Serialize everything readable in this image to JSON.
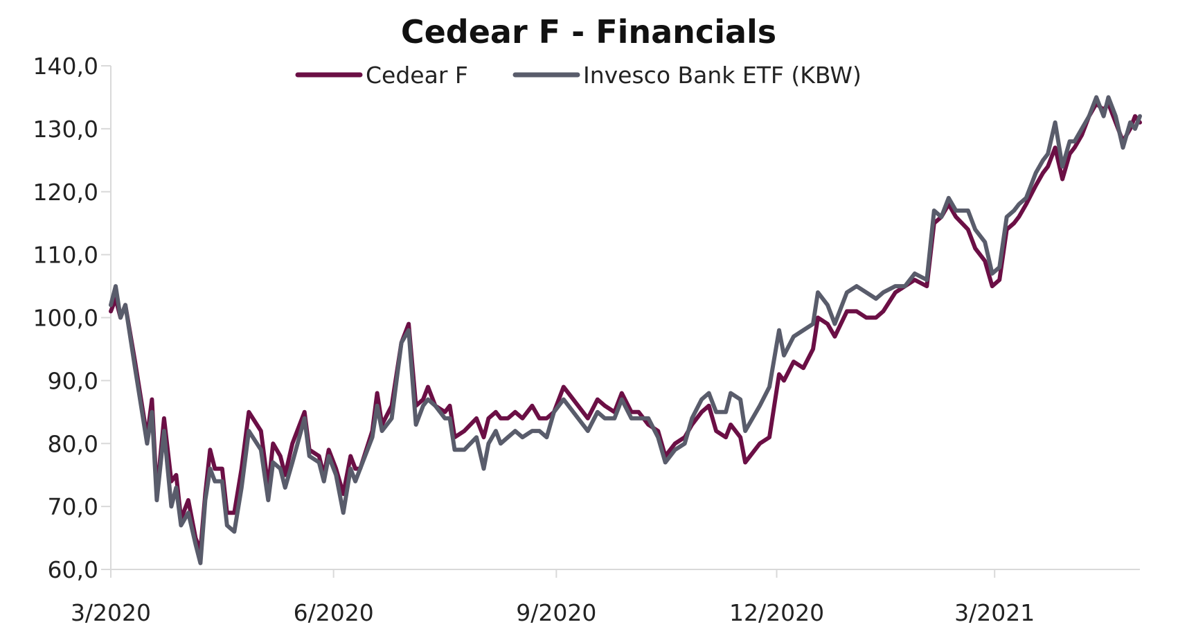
{
  "chart_data": {
    "type": "line",
    "title": "Cedear F - Financials",
    "xlabel": "",
    "ylabel": "",
    "ylim": [
      60,
      140
    ],
    "xlim": [
      "2020-03-01",
      "2021-04-20"
    ],
    "grid": false,
    "legend_position": "top-center",
    "y_ticks": [
      "60,0",
      "70,0",
      "80,0",
      "90,0",
      "100,0",
      "110,0",
      "120,0",
      "130,0",
      "140,0"
    ],
    "x_ticks": [
      {
        "date": "2020-03-01",
        "label": "3/2020"
      },
      {
        "date": "2020-06-01",
        "label": "6/2020"
      },
      {
        "date": "2020-09-01",
        "label": "9/2020"
      },
      {
        "date": "2020-12-01",
        "label": "12/2020"
      },
      {
        "date": "2021-03-01",
        "label": "3/2021"
      }
    ],
    "series": [
      {
        "name": "Cedear F",
        "color": "#6b0f45",
        "points": [
          [
            "2020-03-01",
            101
          ],
          [
            "2020-03-03",
            103
          ],
          [
            "2020-03-05",
            100
          ],
          [
            "2020-03-07",
            102
          ],
          [
            "2020-03-11",
            93
          ],
          [
            "2020-03-16",
            81
          ],
          [
            "2020-03-18",
            87
          ],
          [
            "2020-03-20",
            72
          ],
          [
            "2020-03-23",
            84
          ],
          [
            "2020-03-26",
            74
          ],
          [
            "2020-03-28",
            75
          ],
          [
            "2020-03-30",
            68
          ],
          [
            "2020-04-02",
            71
          ],
          [
            "2020-04-05",
            65
          ],
          [
            "2020-04-07",
            63
          ],
          [
            "2020-04-09",
            72
          ],
          [
            "2020-04-11",
            79
          ],
          [
            "2020-04-13",
            76
          ],
          [
            "2020-04-16",
            76
          ],
          [
            "2020-04-18",
            69
          ],
          [
            "2020-04-21",
            69
          ],
          [
            "2020-04-24",
            76
          ],
          [
            "2020-04-27",
            85
          ],
          [
            "2020-05-02",
            82
          ],
          [
            "2020-05-05",
            73
          ],
          [
            "2020-05-07",
            80
          ],
          [
            "2020-05-10",
            78
          ],
          [
            "2020-05-12",
            75
          ],
          [
            "2020-05-15",
            80
          ],
          [
            "2020-05-20",
            85
          ],
          [
            "2020-05-22",
            79
          ],
          [
            "2020-05-26",
            78
          ],
          [
            "2020-05-28",
            75
          ],
          [
            "2020-05-30",
            79
          ],
          [
            "2020-06-02",
            76
          ],
          [
            "2020-06-05",
            72
          ],
          [
            "2020-06-08",
            78
          ],
          [
            "2020-06-10",
            76
          ],
          [
            "2020-06-12",
            76
          ],
          [
            "2020-06-17",
            82
          ],
          [
            "2020-06-19",
            88
          ],
          [
            "2020-06-21",
            83
          ],
          [
            "2020-06-25",
            86
          ],
          [
            "2020-06-29",
            96
          ],
          [
            "2020-07-02",
            99
          ],
          [
            "2020-07-05",
            86
          ],
          [
            "2020-07-08",
            87
          ],
          [
            "2020-07-10",
            89
          ],
          [
            "2020-07-13",
            86
          ],
          [
            "2020-07-17",
            85
          ],
          [
            "2020-07-19",
            86
          ],
          [
            "2020-07-21",
            81
          ],
          [
            "2020-07-25",
            82
          ],
          [
            "2020-07-30",
            84
          ],
          [
            "2020-08-02",
            81
          ],
          [
            "2020-08-04",
            84
          ],
          [
            "2020-08-07",
            85
          ],
          [
            "2020-08-09",
            84
          ],
          [
            "2020-08-12",
            84
          ],
          [
            "2020-08-15",
            85
          ],
          [
            "2020-08-18",
            84
          ],
          [
            "2020-08-22",
            86
          ],
          [
            "2020-08-25",
            84
          ],
          [
            "2020-08-28",
            84
          ],
          [
            "2020-08-31",
            85
          ],
          [
            "2020-09-04",
            89
          ],
          [
            "2020-09-06",
            88
          ],
          [
            "2020-09-10",
            86
          ],
          [
            "2020-09-14",
            84
          ],
          [
            "2020-09-18",
            87
          ],
          [
            "2020-09-21",
            86
          ],
          [
            "2020-09-25",
            85
          ],
          [
            "2020-09-28",
            88
          ],
          [
            "2020-10-02",
            85
          ],
          [
            "2020-10-05",
            85
          ],
          [
            "2020-10-09",
            83
          ],
          [
            "2020-10-13",
            82
          ],
          [
            "2020-10-16",
            78
          ],
          [
            "2020-10-20",
            80
          ],
          [
            "2020-10-24",
            81
          ],
          [
            "2020-10-27",
            83
          ],
          [
            "2020-10-31",
            85
          ],
          [
            "2020-11-03",
            86
          ],
          [
            "2020-11-06",
            82
          ],
          [
            "2020-11-10",
            81
          ],
          [
            "2020-11-12",
            83
          ],
          [
            "2020-11-16",
            81
          ],
          [
            "2020-11-18",
            77
          ],
          [
            "2020-11-24",
            80
          ],
          [
            "2020-11-28",
            81
          ],
          [
            "2020-12-02",
            91
          ],
          [
            "2020-12-04",
            90
          ],
          [
            "2020-12-08",
            93
          ],
          [
            "2020-12-12",
            92
          ],
          [
            "2020-12-16",
            95
          ],
          [
            "2020-12-18",
            100
          ],
          [
            "2020-12-22",
            99
          ],
          [
            "2020-12-25",
            97
          ],
          [
            "2020-12-30",
            101
          ],
          [
            "2021-01-03",
            101
          ],
          [
            "2021-01-07",
            100
          ],
          [
            "2021-01-11",
            100
          ],
          [
            "2021-01-14",
            101
          ],
          [
            "2021-01-19",
            104
          ],
          [
            "2021-01-23",
            105
          ],
          [
            "2021-01-27",
            106
          ],
          [
            "2021-02-01",
            105
          ],
          [
            "2021-02-04",
            115
          ],
          [
            "2021-02-07",
            116
          ],
          [
            "2021-02-10",
            118
          ],
          [
            "2021-02-13",
            116
          ],
          [
            "2021-02-18",
            114
          ],
          [
            "2021-02-21",
            111
          ],
          [
            "2021-02-25",
            109
          ],
          [
            "2021-02-28",
            105
          ],
          [
            "2021-03-03",
            106
          ],
          [
            "2021-03-06",
            114
          ],
          [
            "2021-03-09",
            115
          ],
          [
            "2021-03-11",
            116
          ],
          [
            "2021-03-14",
            118
          ],
          [
            "2021-03-18",
            121
          ],
          [
            "2021-03-21",
            123
          ],
          [
            "2021-03-23",
            124
          ],
          [
            "2021-03-26",
            127
          ],
          [
            "2021-03-29",
            122
          ],
          [
            "2021-04-01",
            126
          ],
          [
            "2021-04-03",
            127
          ],
          [
            "2021-04-06",
            129
          ],
          [
            "2021-04-09",
            132
          ],
          [
            "2021-04-12",
            134
          ],
          [
            "2021-04-15",
            133
          ],
          [
            "2021-04-17",
            134
          ],
          [
            "2021-04-20",
            131
          ],
          [
            "2021-04-23",
            128
          ],
          [
            "2021-04-26",
            130
          ],
          [
            "2021-04-28",
            132
          ],
          [
            "2021-04-30",
            131
          ]
        ]
      },
      {
        "name": "Invesco Bank ETF (KBW)",
        "color": "#595c6b",
        "points": [
          [
            "2020-03-01",
            102
          ],
          [
            "2020-03-03",
            105
          ],
          [
            "2020-03-05",
            100
          ],
          [
            "2020-03-07",
            102
          ],
          [
            "2020-03-11",
            92
          ],
          [
            "2020-03-16",
            80
          ],
          [
            "2020-03-18",
            85
          ],
          [
            "2020-03-20",
            71
          ],
          [
            "2020-03-23",
            82
          ],
          [
            "2020-03-26",
            70
          ],
          [
            "2020-03-28",
            73
          ],
          [
            "2020-03-30",
            67
          ],
          [
            "2020-04-02",
            69
          ],
          [
            "2020-04-05",
            64
          ],
          [
            "2020-04-07",
            61
          ],
          [
            "2020-04-09",
            71
          ],
          [
            "2020-04-11",
            76
          ],
          [
            "2020-04-13",
            74
          ],
          [
            "2020-04-16",
            74
          ],
          [
            "2020-04-18",
            67
          ],
          [
            "2020-04-21",
            66
          ],
          [
            "2020-04-24",
            73
          ],
          [
            "2020-04-27",
            82
          ],
          [
            "2020-05-02",
            79
          ],
          [
            "2020-05-05",
            71
          ],
          [
            "2020-05-07",
            77
          ],
          [
            "2020-05-10",
            76
          ],
          [
            "2020-05-12",
            73
          ],
          [
            "2020-05-15",
            77
          ],
          [
            "2020-05-20",
            84
          ],
          [
            "2020-05-22",
            78
          ],
          [
            "2020-05-26",
            77
          ],
          [
            "2020-05-28",
            74
          ],
          [
            "2020-05-30",
            78
          ],
          [
            "2020-06-02",
            75
          ],
          [
            "2020-06-05",
            69
          ],
          [
            "2020-06-08",
            76
          ],
          [
            "2020-06-10",
            74
          ],
          [
            "2020-06-12",
            76
          ],
          [
            "2020-06-17",
            81
          ],
          [
            "2020-06-19",
            86
          ],
          [
            "2020-06-21",
            82
          ],
          [
            "2020-06-25",
            84
          ],
          [
            "2020-06-29",
            96
          ],
          [
            "2020-07-02",
            98
          ],
          [
            "2020-07-05",
            83
          ],
          [
            "2020-07-08",
            86
          ],
          [
            "2020-07-10",
            87
          ],
          [
            "2020-07-13",
            86
          ],
          [
            "2020-07-17",
            84
          ],
          [
            "2020-07-19",
            84
          ],
          [
            "2020-07-21",
            79
          ],
          [
            "2020-07-25",
            79
          ],
          [
            "2020-07-30",
            81
          ],
          [
            "2020-08-02",
            76
          ],
          [
            "2020-08-04",
            80
          ],
          [
            "2020-08-07",
            82
          ],
          [
            "2020-08-09",
            80
          ],
          [
            "2020-08-12",
            81
          ],
          [
            "2020-08-15",
            82
          ],
          [
            "2020-08-18",
            81
          ],
          [
            "2020-08-22",
            82
          ],
          [
            "2020-08-25",
            82
          ],
          [
            "2020-08-28",
            81
          ],
          [
            "2020-08-31",
            85
          ],
          [
            "2020-09-04",
            87
          ],
          [
            "2020-09-06",
            86
          ],
          [
            "2020-09-10",
            84
          ],
          [
            "2020-09-14",
            82
          ],
          [
            "2020-09-18",
            85
          ],
          [
            "2020-09-21",
            84
          ],
          [
            "2020-09-25",
            84
          ],
          [
            "2020-09-28",
            87
          ],
          [
            "2020-10-02",
            84
          ],
          [
            "2020-10-05",
            84
          ],
          [
            "2020-10-09",
            84
          ],
          [
            "2020-10-13",
            81
          ],
          [
            "2020-10-16",
            77
          ],
          [
            "2020-10-20",
            79
          ],
          [
            "2020-10-24",
            80
          ],
          [
            "2020-10-27",
            84
          ],
          [
            "2020-10-31",
            87
          ],
          [
            "2020-11-03",
            88
          ],
          [
            "2020-11-06",
            85
          ],
          [
            "2020-11-10",
            85
          ],
          [
            "2020-11-12",
            88
          ],
          [
            "2020-11-16",
            87
          ],
          [
            "2020-11-18",
            82
          ],
          [
            "2020-11-24",
            86
          ],
          [
            "2020-11-28",
            89
          ],
          [
            "2020-12-02",
            98
          ],
          [
            "2020-12-04",
            94
          ],
          [
            "2020-12-08",
            97
          ],
          [
            "2020-12-12",
            98
          ],
          [
            "2020-12-16",
            99
          ],
          [
            "2020-12-18",
            104
          ],
          [
            "2020-12-22",
            102
          ],
          [
            "2020-12-25",
            99
          ],
          [
            "2020-12-30",
            104
          ],
          [
            "2021-01-03",
            105
          ],
          [
            "2021-01-07",
            104
          ],
          [
            "2021-01-11",
            103
          ],
          [
            "2021-01-14",
            104
          ],
          [
            "2021-01-19",
            105
          ],
          [
            "2021-01-23",
            105
          ],
          [
            "2021-01-27",
            107
          ],
          [
            "2021-02-01",
            106
          ],
          [
            "2021-02-04",
            117
          ],
          [
            "2021-02-07",
            116
          ],
          [
            "2021-02-10",
            119
          ],
          [
            "2021-02-13",
            117
          ],
          [
            "2021-02-18",
            117
          ],
          [
            "2021-02-21",
            114
          ],
          [
            "2021-02-25",
            112
          ],
          [
            "2021-02-28",
            107
          ],
          [
            "2021-03-03",
            108
          ],
          [
            "2021-03-06",
            116
          ],
          [
            "2021-03-09",
            117
          ],
          [
            "2021-03-11",
            118
          ],
          [
            "2021-03-14",
            119
          ],
          [
            "2021-03-18",
            123
          ],
          [
            "2021-03-21",
            125
          ],
          [
            "2021-03-23",
            126
          ],
          [
            "2021-03-26",
            131
          ],
          [
            "2021-03-29",
            124
          ],
          [
            "2021-04-01",
            128
          ],
          [
            "2021-04-03",
            128
          ],
          [
            "2021-04-06",
            130
          ],
          [
            "2021-04-09",
            132
          ],
          [
            "2021-04-12",
            135
          ],
          [
            "2021-04-15",
            132
          ],
          [
            "2021-04-17",
            135
          ],
          [
            "2021-04-20",
            132
          ],
          [
            "2021-04-23",
            127
          ],
          [
            "2021-04-26",
            131
          ],
          [
            "2021-04-28",
            130
          ],
          [
            "2021-04-30",
            132
          ]
        ]
      }
    ]
  }
}
